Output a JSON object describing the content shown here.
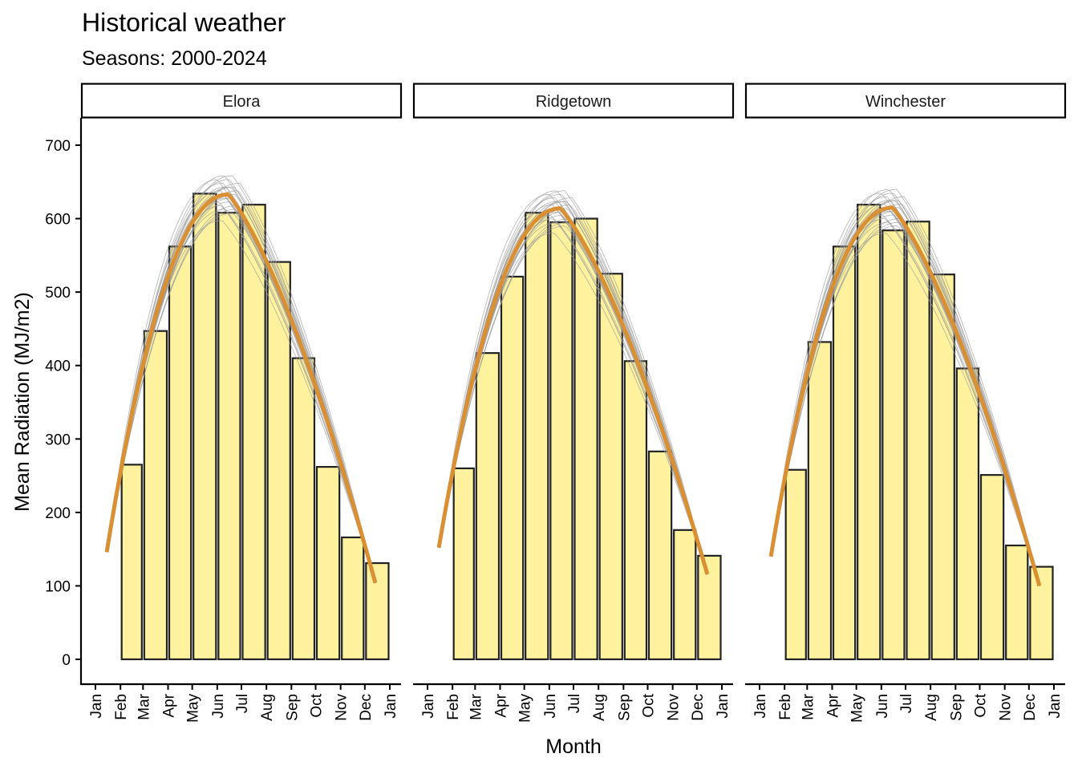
{
  "chart_data": {
    "type": "bar",
    "title": "Historical weather",
    "subtitle": "Seasons: 2000-2024",
    "xlabel": "Month",
    "ylabel": "Mean Radiation (MJ/m2)",
    "ylim": [
      -35,
      735
    ],
    "yticks": [
      0,
      100,
      200,
      300,
      400,
      500,
      600,
      700
    ],
    "xtick_labels": [
      "Jan",
      "Feb",
      "Mar",
      "Apr",
      "May",
      "Jun",
      "Jul",
      "Aug",
      "Sep",
      "Oct",
      "Nov",
      "Dec",
      "Jan"
    ],
    "categories": [
      "Feb",
      "Mar",
      "Apr",
      "May",
      "Jun",
      "Jul",
      "Aug",
      "Sep",
      "Oct",
      "Nov",
      "Dec"
    ],
    "grid": false,
    "legend": "none",
    "colors": {
      "bar_fill": "#FFF29E",
      "bar_outline": "#222222",
      "smooth": "#D98F32",
      "year_lines": "#9a9a9a"
    },
    "panels": [
      {
        "name": "Elora",
        "values": [
          265,
          447,
          562,
          634,
          608,
          619,
          541,
          410,
          262,
          166,
          131
        ],
        "smooth": {
          "start": 146,
          "peak": 633,
          "end": 100
        }
      },
      {
        "name": "Ridgetown",
        "values": [
          260,
          417,
          521,
          608,
          595,
          600,
          525,
          406,
          283,
          176,
          141
        ],
        "smooth": {
          "start": 152,
          "peak": 614,
          "end": 112
        }
      },
      {
        "name": "Winchester",
        "values": [
          258,
          432,
          562,
          619,
          584,
          596,
          524,
          396,
          251,
          155,
          126
        ],
        "smooth": {
          "start": 140,
          "peak": 615,
          "end": 96
        }
      }
    ],
    "year_curves": {
      "years": [
        2000,
        2024
      ],
      "count": 25,
      "relative_peak_factors": [
        0.93,
        0.95,
        0.96,
        0.97,
        0.98,
        0.98,
        0.99,
        0.99,
        1.0,
        1.0,
        1.0,
        1.01,
        1.01,
        1.02,
        1.02,
        1.02,
        1.03,
        1.03,
        1.04,
        1.04,
        1.05,
        1.05,
        0.96,
        0.97,
        1.0
      ],
      "relative_shift_days": [
        -8,
        6,
        -4,
        10,
        2,
        -12,
        4,
        -2,
        8,
        0,
        -6,
        12,
        -10,
        3,
        -3,
        7,
        -7,
        14,
        -14,
        1,
        5,
        -5,
        9,
        -9,
        0
      ]
    }
  }
}
